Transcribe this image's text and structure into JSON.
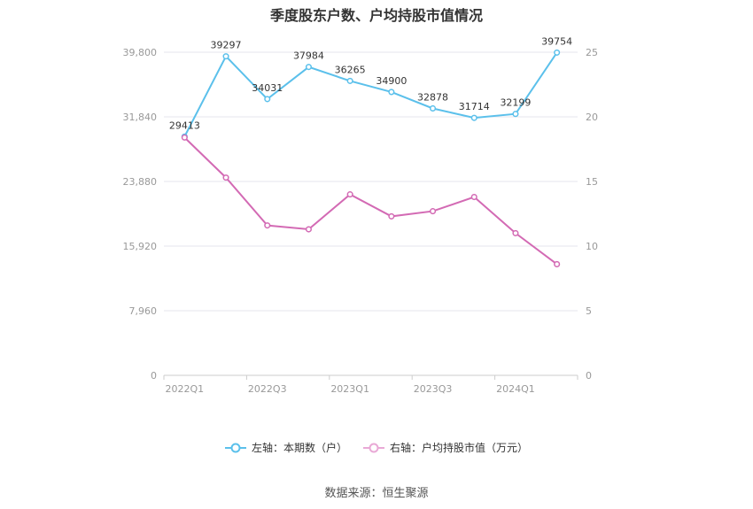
{
  "title": "季度股东户数、户均持股市值情况",
  "source": "数据来源：恒生聚源",
  "legend": {
    "left_label": "左轴：本期数（户）",
    "right_label": "右轴：户均持股市值（万元）"
  },
  "colors": {
    "left": "#5bc0eb",
    "right": "#d36ab4",
    "grid": "#e6e6ee",
    "axis": "#999999"
  },
  "chart_data": {
    "type": "line",
    "x": [
      "2022Q1",
      "2022Q2",
      "2022Q3",
      "2022Q4",
      "2023Q1",
      "2023Q2",
      "2023Q3",
      "2023Q4",
      "2024Q1",
      "2024Q2"
    ],
    "x_tick_labels": [
      "2022Q1",
      "2022Q3",
      "2023Q1",
      "2023Q3",
      "2024Q1"
    ],
    "y_left": {
      "min": 0,
      "max": 39800,
      "ticks": [
        "0",
        "7,960",
        "15,920",
        "23,880",
        "31,840",
        "39,800"
      ]
    },
    "y_right": {
      "min": 0,
      "max": 25,
      "ticks": [
        "0",
        "5",
        "10",
        "15",
        "20",
        "25"
      ]
    },
    "series": [
      {
        "name": "本期数（户）",
        "axis": "left",
        "values": [
          29413,
          39297,
          34031,
          37984,
          36265,
          34900,
          32878,
          31714,
          32199,
          39754
        ],
        "labels": [
          "29413",
          "39297",
          "34031",
          "37984",
          "36265",
          "34900",
          "32878",
          "31714",
          "32199",
          "39754"
        ]
      },
      {
        "name": "户均持股市值（万元）",
        "axis": "right",
        "values": [
          18.4,
          15.3,
          11.6,
          11.3,
          14.0,
          12.3,
          12.7,
          13.8,
          11.0,
          8.6
        ]
      }
    ]
  }
}
